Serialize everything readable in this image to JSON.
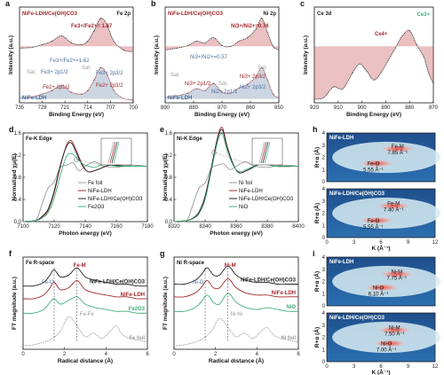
{
  "colors": {
    "red": "#a3282b",
    "blue": "#4a6d9c",
    "green": "#3fae7a",
    "gray": "#9a9a9a",
    "black": "#222222",
    "fill_red": "#c24a4f",
    "fill_blue": "#6c88ad"
  },
  "chart_data": [
    {
      "id": "a",
      "type": "line",
      "panel_label": "a",
      "xlabel": "Binding Energy (eV)",
      "ylabel": "Intensity (a.u.)",
      "xlim": [
        735,
        700
      ],
      "xticks": [
        735,
        728,
        721,
        714,
        707,
        700
      ],
      "element_label": "Fe 2p",
      "legend": [
        "NiFe-LDH/Ce(OH)CO3",
        "NiFe-LDH"
      ],
      "annotations": [
        "Fe3+/Fe2+= 1.87",
        "Fe3+/Fe2+=1.62",
        "Sat.",
        "Fe3+ 2p1/2",
        "Fe2+ 2p1/2",
        "Fe3+ 2p3/2",
        "Fe2+ 2p3/2",
        "Sat."
      ],
      "series": [
        {
          "name": "NiFe-LDH/Ce(OH)CO3",
          "x": [
            735,
            731,
            728,
            725,
            722,
            719,
            716,
            714,
            712,
            710,
            708,
            706,
            703,
            700
          ],
          "y": [
            0.62,
            0.63,
            0.66,
            0.7,
            0.76,
            0.68,
            0.66,
            0.7,
            0.82,
            0.96,
            0.88,
            0.7,
            0.6,
            0.58
          ]
        },
        {
          "name": "NiFe-LDH",
          "x": [
            735,
            731,
            728,
            725,
            722,
            719,
            716,
            714,
            712,
            710,
            708,
            706,
            703,
            700
          ],
          "y": [
            0.06,
            0.07,
            0.1,
            0.14,
            0.2,
            0.12,
            0.1,
            0.14,
            0.26,
            0.4,
            0.32,
            0.14,
            0.05,
            0.03
          ]
        }
      ]
    },
    {
      "id": "b",
      "type": "line",
      "panel_label": "b",
      "xlabel": "Binding Energy (eV)",
      "ylabel": "Intensity (a.u.)",
      "xlim": [
        890,
        850
      ],
      "xticks": [
        890,
        880,
        870,
        860,
        850
      ],
      "element_label": "Ni 2p",
      "legend": [
        "NiFe-LDH/Ce(OH)CO3",
        "NiFe-LDH"
      ],
      "annotations": [
        "Ni3+/Ni2+=0.76",
        "Ni3+/Ni2+=0.57",
        "Sat.",
        "Sat.",
        "Ni3+ 2p1/2",
        "Ni2+ 2p1/2",
        "Ni3+ 2p3/2",
        "Ni2+ 2p3/2",
        "Sat."
      ],
      "series": [
        {
          "name": "NiFe-LDH/Ce(OH)CO3",
          "x": [
            890,
            886,
            882,
            879,
            876,
            873,
            870,
            867,
            864,
            861,
            858,
            856,
            854,
            852,
            850
          ],
          "y": [
            0.6,
            0.62,
            0.65,
            0.7,
            0.68,
            0.74,
            0.65,
            0.64,
            0.7,
            0.74,
            0.84,
            0.96,
            0.8,
            0.64,
            0.6
          ]
        },
        {
          "name": "NiFe-LDH",
          "x": [
            890,
            886,
            882,
            879,
            876,
            873,
            870,
            867,
            864,
            861,
            858,
            856,
            854,
            852,
            850
          ],
          "y": [
            0.06,
            0.08,
            0.11,
            0.16,
            0.14,
            0.22,
            0.12,
            0.11,
            0.17,
            0.21,
            0.3,
            0.4,
            0.26,
            0.1,
            0.06
          ]
        }
      ]
    },
    {
      "id": "c",
      "type": "line",
      "panel_label": "c",
      "xlabel": "Binding Energy (eV)",
      "ylabel": "Intensity (a.u.)",
      "xlim": [
        920,
        870
      ],
      "xticks": [
        920,
        910,
        900,
        890,
        880,
        870
      ],
      "element_label": "Ce 3d",
      "annotations": [
        "Ce3+",
        "Ce4+"
      ],
      "series": [
        {
          "name": "Ce 3d",
          "x": [
            920,
            916,
            912,
            908,
            904,
            901,
            898,
            895,
            892,
            889,
            886,
            883,
            880,
            877,
            874,
            872,
            870
          ],
          "y": [
            0.04,
            0.06,
            0.18,
            0.16,
            0.34,
            0.44,
            0.36,
            0.26,
            0.34,
            0.48,
            0.62,
            0.76,
            0.82,
            0.66,
            0.52,
            0.34,
            0.22
          ]
        }
      ]
    },
    {
      "id": "d",
      "type": "line",
      "panel_label": "d",
      "title": "Fe-K Edge",
      "xlabel": "Photon energy (eV)",
      "ylabel": "Normalized χμ(E)",
      "xlim": [
        7100,
        7180
      ],
      "xticks": [
        7100,
        7120,
        7140,
        7160,
        7180
      ],
      "ylim": [
        0,
        1.6
      ],
      "yticks": [
        0.0,
        0.4,
        0.8,
        1.2,
        1.6
      ],
      "series": [
        {
          "name": "Fe foil",
          "x": [
            7100,
            7108,
            7112,
            7116,
            7120,
            7124,
            7128,
            7132,
            7136,
            7140,
            7146,
            7152,
            7160,
            7170,
            7180
          ],
          "y": [
            0.0,
            0.02,
            0.3,
            0.6,
            0.72,
            0.98,
            1.02,
            1.06,
            0.92,
            1.0,
            1.08,
            1.0,
            0.98,
            1.02,
            1.0
          ]
        },
        {
          "name": "NiFe-LDH",
          "x": [
            7100,
            7108,
            7112,
            7116,
            7120,
            7124,
            7128,
            7131,
            7134,
            7138,
            7142,
            7148,
            7156,
            7166,
            7180
          ],
          "y": [
            0.0,
            0.02,
            0.08,
            0.2,
            0.52,
            1.0,
            1.38,
            1.46,
            1.3,
            1.04,
            0.9,
            0.94,
            1.02,
            1.0,
            1.0
          ]
        },
        {
          "name": "NiFe-LDH/Ce(OH)CO3",
          "x": [
            7100,
            7108,
            7112,
            7116,
            7120,
            7124,
            7128,
            7131,
            7134,
            7138,
            7142,
            7148,
            7156,
            7166,
            7180
          ],
          "y": [
            0.0,
            0.02,
            0.09,
            0.22,
            0.55,
            1.02,
            1.36,
            1.42,
            1.26,
            1.02,
            0.9,
            0.94,
            1.02,
            1.0,
            1.0
          ]
        },
        {
          "name": "Fe2O3",
          "x": [
            7100,
            7108,
            7112,
            7116,
            7120,
            7124,
            7128,
            7132,
            7136,
            7140,
            7146,
            7152,
            7160,
            7170,
            7180
          ],
          "y": [
            0.0,
            0.02,
            0.06,
            0.16,
            0.42,
            0.84,
            1.18,
            1.22,
            1.1,
            1.02,
            0.98,
            1.04,
            1.0,
            1.0,
            1.0
          ]
        }
      ],
      "legend": [
        "Fe foil",
        "NiFe-LDH",
        "NiFe-LDH/Ce(OH)CO3",
        "Fe2O3"
      ]
    },
    {
      "id": "e",
      "type": "line",
      "panel_label": "e",
      "title": "Ni-K Edge",
      "xlabel": "Photon energy (eV)",
      "ylabel": "Normalized χμ(E)",
      "xlim": [
        8320,
        8400
      ],
      "xticks": [
        8320,
        8340,
        8360,
        8380,
        8400
      ],
      "ylim": [
        0,
        1.6
      ],
      "yticks": [
        0.0,
        0.4,
        0.8,
        1.2,
        1.6
      ],
      "series": [
        {
          "name": "Ni foil",
          "x": [
            8320,
            8328,
            8332,
            8336,
            8340,
            8344,
            8348,
            8352,
            8356,
            8360,
            8366,
            8372,
            8380,
            8390,
            8400
          ],
          "y": [
            0.0,
            0.02,
            0.3,
            0.6,
            0.7,
            0.96,
            1.02,
            1.04,
            0.94,
            1.0,
            1.08,
            1.0,
            0.98,
            1.02,
            1.0
          ]
        },
        {
          "name": "NiFe-LDH",
          "x": [
            8320,
            8328,
            8332,
            8336,
            8340,
            8344,
            8348,
            8351,
            8354,
            8358,
            8362,
            8368,
            8376,
            8386,
            8400
          ],
          "y": [
            0.0,
            0.02,
            0.06,
            0.16,
            0.44,
            0.96,
            1.52,
            1.7,
            1.38,
            1.04,
            0.88,
            0.94,
            1.04,
            1.0,
            1.0
          ]
        },
        {
          "name": "NiFe-LDH/Ce(OH)CO3",
          "x": [
            8320,
            8328,
            8332,
            8336,
            8340,
            8344,
            8348,
            8351,
            8354,
            8358,
            8362,
            8368,
            8376,
            8386,
            8400
          ],
          "y": [
            0.0,
            0.02,
            0.06,
            0.17,
            0.46,
            0.98,
            1.5,
            1.66,
            1.36,
            1.04,
            0.88,
            0.94,
            1.04,
            1.0,
            1.0
          ]
        },
        {
          "name": "NiO",
          "x": [
            8320,
            8328,
            8332,
            8336,
            8340,
            8344,
            8348,
            8351,
            8354,
            8358,
            8362,
            8368,
            8376,
            8386,
            8400
          ],
          "y": [
            0.0,
            0.02,
            0.05,
            0.14,
            0.4,
            0.92,
            1.44,
            1.58,
            1.3,
            1.02,
            0.9,
            0.96,
            1.04,
            1.0,
            1.0
          ]
        }
      ],
      "legend": [
        "Ni foil",
        "NiFe-LDH",
        "NiFe-LDH/Ce(OH)CO3",
        "NiO"
      ]
    },
    {
      "id": "f",
      "type": "line",
      "panel_label": "f",
      "title": "Fe R-space",
      "xlabel": "Radical distance (Å)",
      "ylabel": "FT magnitude (a.u.)",
      "xlim": [
        0,
        6
      ],
      "xticks": [
        0,
        2,
        4,
        6
      ],
      "annotations": [
        "Fe-M",
        "Fe-O",
        "Fe-Fe"
      ],
      "series": [
        {
          "name": "NiFe-LDH/Ce(OH)CO3",
          "x": [
            0,
            0.5,
            1.0,
            1.3,
            1.5,
            1.8,
            2.2,
            2.6,
            3.0,
            3.5,
            4.0,
            4.5,
            5.0,
            5.5,
            6.0
          ],
          "y": [
            3.3,
            3.3,
            3.5,
            3.9,
            4.2,
            3.8,
            3.9,
            4.3,
            3.8,
            3.6,
            3.5,
            3.4,
            3.4,
            3.3,
            3.3
          ]
        },
        {
          "name": "NiFe-LDH",
          "x": [
            0,
            0.5,
            1.0,
            1.3,
            1.5,
            1.8,
            2.2,
            2.6,
            3.0,
            3.5,
            4.0,
            4.5,
            5.0,
            5.5,
            6.0
          ],
          "y": [
            2.6,
            2.6,
            2.8,
            3.2,
            3.5,
            3.1,
            3.2,
            3.6,
            3.1,
            2.9,
            2.8,
            2.7,
            2.7,
            2.6,
            2.6
          ]
        },
        {
          "name": "Fe2O3",
          "x": [
            0,
            0.5,
            1.0,
            1.3,
            1.5,
            1.8,
            2.2,
            2.6,
            3.0,
            3.5,
            4.0,
            4.5,
            5.0,
            5.5,
            6.0
          ],
          "y": [
            1.8,
            1.8,
            2.0,
            2.4,
            2.6,
            2.3,
            2.5,
            2.7,
            2.3,
            2.1,
            2.0,
            1.9,
            1.9,
            1.8,
            1.8
          ]
        },
        {
          "name": "Fe foil",
          "x": [
            0,
            0.5,
            1.0,
            1.4,
            1.8,
            2.2,
            2.6,
            3.0,
            3.4,
            3.8,
            4.2,
            4.5,
            4.8,
            5.2,
            5.6,
            6.0
          ],
          "y": [
            0.0,
            0.05,
            0.2,
            0.4,
            0.8,
            1.6,
            1.1,
            0.5,
            0.7,
            0.4,
            0.8,
            1.1,
            0.6,
            0.4,
            0.3,
            0.2
          ]
        }
      ]
    },
    {
      "id": "g",
      "type": "line",
      "panel_label": "g",
      "title": "Ni R-space",
      "xlabel": "Radical distance (Å)",
      "ylabel": "FT magnitude (a.u.)",
      "xlim": [
        0,
        6
      ],
      "xticks": [
        0,
        2,
        4,
        6
      ],
      "annotations": [
        "Ni-M",
        "Ni-O",
        "Ni-Ni"
      ],
      "series": [
        {
          "name": "NiFe-LDH/Ce(OH)CO3",
          "x": [
            0,
            0.5,
            1.0,
            1.3,
            1.6,
            1.9,
            2.2,
            2.6,
            3.0,
            3.5,
            4.0,
            4.5,
            5.0,
            5.5,
            6.0
          ],
          "y": [
            3.4,
            3.4,
            3.6,
            3.9,
            4.3,
            3.9,
            3.9,
            4.4,
            3.9,
            3.6,
            3.5,
            3.5,
            3.4,
            3.4,
            3.4
          ]
        },
        {
          "name": "NiFe-LDH",
          "x": [
            0,
            0.5,
            1.0,
            1.3,
            1.6,
            1.9,
            2.2,
            2.6,
            3.0,
            3.5,
            4.0,
            4.5,
            5.0,
            5.5,
            6.0
          ],
          "y": [
            2.7,
            2.7,
            2.9,
            3.2,
            3.6,
            3.2,
            3.2,
            3.7,
            3.2,
            2.9,
            2.8,
            2.8,
            2.7,
            2.7,
            2.7
          ]
        },
        {
          "name": "NiO",
          "x": [
            0,
            0.5,
            1.0,
            1.3,
            1.6,
            1.9,
            2.2,
            2.6,
            3.0,
            3.5,
            4.0,
            4.5,
            5.0,
            5.5,
            6.0
          ],
          "y": [
            1.9,
            1.9,
            2.1,
            2.4,
            2.8,
            2.4,
            2.3,
            2.9,
            2.4,
            2.1,
            2.0,
            2.1,
            2.0,
            1.9,
            1.9
          ]
        },
        {
          "name": "Ni foil",
          "x": [
            0,
            0.5,
            1.0,
            1.4,
            1.8,
            2.2,
            2.6,
            3.0,
            3.4,
            3.8,
            4.2,
            4.5,
            4.8,
            5.2,
            5.6,
            6.0
          ],
          "y": [
            0.0,
            0.05,
            0.2,
            0.4,
            0.8,
            1.5,
            1.0,
            0.5,
            0.7,
            0.4,
            0.8,
            1.0,
            0.6,
            0.4,
            0.3,
            0.2
          ]
        }
      ]
    },
    {
      "id": "h",
      "type": "heatmap",
      "panel_label": "h",
      "xlabel": "K (Å⁻¹)",
      "ylabel": "R+α (Å)",
      "xlim": [
        0,
        12
      ],
      "xticks": [
        0,
        3,
        6,
        9,
        12
      ],
      "ylim": [
        0,
        4
      ],
      "yticks": [
        0,
        1,
        2,
        3,
        4
      ],
      "maps": [
        {
          "name": "NiFe-LDH",
          "labels": [
            "Fe-M",
            "7.85 Å⁻¹",
            "Fe-O",
            "5.55 Å⁻¹"
          ],
          "peaks": [
            {
              "k": 7.85,
              "r": 2.7
            },
            {
              "k": 5.55,
              "r": 1.5
            }
          ]
        },
        {
          "name": "NiFe-LDH/Ce(OH)CO3",
          "labels": [
            "Fe-M",
            "7.40 Å⁻¹",
            "Fe-O",
            "5.55 Å⁻¹"
          ],
          "peaks": [
            {
              "k": 7.4,
              "r": 2.6
            },
            {
              "k": 5.55,
              "r": 1.4
            }
          ]
        }
      ]
    },
    {
      "id": "i",
      "type": "heatmap",
      "panel_label": "i",
      "xlabel": "K (Å⁻¹)",
      "ylabel": "R+α (Å)",
      "xlim": [
        0,
        12
      ],
      "xticks": [
        0,
        3,
        6,
        9,
        12
      ],
      "ylim": [
        0,
        4
      ],
      "yticks": [
        0,
        1,
        2,
        3,
        4
      ],
      "maps": [
        {
          "name": "NiFe-LDH",
          "labels": [
            "Ni-M",
            "7.75 Å⁻¹",
            "Ni-O",
            "6.10 Å⁻¹"
          ],
          "peaks": [
            {
              "k": 7.75,
              "r": 2.6
            },
            {
              "k": 6.1,
              "r": 1.5
            }
          ]
        },
        {
          "name": "NiFe-LDH/Ce(OH)CO3",
          "labels": [
            "Ni-M",
            "7.50 Å⁻¹",
            "Ni-O",
            "7.00 Å⁻¹"
          ],
          "peaks": [
            {
              "k": 7.5,
              "r": 2.6
            },
            {
              "k": 7.0,
              "r": 1.5
            }
          ]
        }
      ]
    }
  ]
}
